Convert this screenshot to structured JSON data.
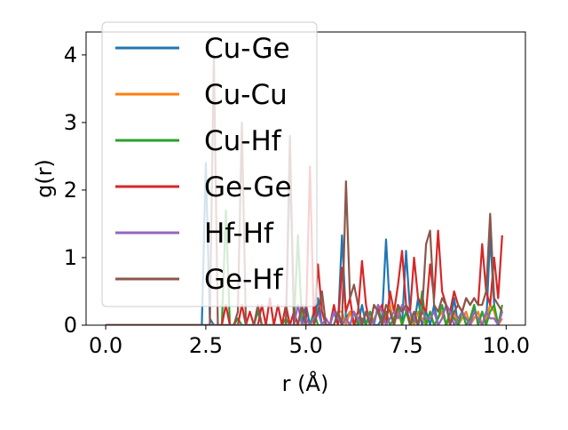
{
  "chart_data": {
    "type": "line",
    "x_label": "r (Å)",
    "y_label": "g(r)",
    "xlim": [
      -0.49,
      10.48
    ],
    "ylim": [
      0,
      4.34
    ],
    "xticks": [
      {
        "value": 0,
        "label": "0.0"
      },
      {
        "value": 2.5,
        "label": "2.5"
      },
      {
        "value": 5,
        "label": "5.0"
      },
      {
        "value": 7.5,
        "label": "7.5"
      },
      {
        "value": 10,
        "label": "10.0"
      }
    ],
    "yticks": [
      0,
      1,
      2,
      3,
      4
    ],
    "legend": "upper left",
    "x": [
      0,
      0.1,
      0.2,
      0.3,
      0.4,
      0.5,
      0.6,
      0.7,
      0.8,
      0.9,
      1,
      1.1,
      1.2,
      1.3,
      1.4,
      1.5,
      1.6,
      1.7,
      1.8,
      1.9,
      2,
      2.1,
      2.2,
      2.3,
      2.4,
      2.5,
      2.6,
      2.7,
      2.8,
      2.9,
      3,
      3.1,
      3.2,
      3.3,
      3.4,
      3.5,
      3.6,
      3.7,
      3.8,
      3.9,
      4,
      4.1,
      4.2,
      4.3,
      4.4,
      4.5,
      4.6,
      4.7,
      4.8,
      4.9,
      5,
      5.1,
      5.2,
      5.3,
      5.4,
      5.5,
      5.6,
      5.7,
      5.8,
      5.9,
      6,
      6.1,
      6.2,
      6.3,
      6.4,
      6.5,
      6.6,
      6.7,
      6.8,
      6.9,
      7,
      7.1,
      7.2,
      7.3,
      7.4,
      7.5,
      7.6,
      7.7,
      7.8,
      7.9,
      8,
      8.1,
      8.2,
      8.3,
      8.4,
      8.5,
      8.6,
      8.7,
      8.8,
      8.9,
      9,
      9.1,
      9.2,
      9.3,
      9.4,
      9.5,
      9.6,
      9.7,
      9.8,
      9.9
    ],
    "series": [
      {
        "name": "Cu-Ge",
        "color": "#1f77b4",
        "values": [
          0,
          0,
          0,
          0,
          0,
          0,
          0,
          0,
          0,
          0,
          0,
          0,
          0,
          0,
          0,
          0,
          0,
          0,
          0,
          0,
          0,
          0,
          0,
          0,
          0,
          2.4,
          0.1,
          0,
          0,
          0,
          0,
          0,
          0,
          0,
          0,
          0,
          0,
          0,
          0,
          0,
          0,
          0,
          0,
          0,
          0,
          0,
          2.4,
          0.2,
          0,
          0,
          0.3,
          0,
          0,
          0.4,
          0,
          0,
          0,
          0.2,
          0,
          1.33,
          0.1,
          0.2,
          0,
          0,
          0.3,
          0,
          0.2,
          0,
          0,
          0.1,
          1.27,
          0.2,
          0,
          0.3,
          0,
          1.1,
          0.2,
          0,
          0.4,
          0,
          0.2,
          0,
          0.3,
          0,
          0.1,
          0.3,
          0,
          0.4,
          0,
          0.2,
          0.1,
          0,
          0.3,
          0,
          0.2,
          0,
          1.33,
          0.3,
          0,
          0.2
        ]
      },
      {
        "name": "Cu-Cu",
        "color": "#ff7f0e",
        "values": [
          0,
          0,
          0,
          0,
          0,
          0,
          0,
          0,
          0,
          0,
          0,
          0,
          0,
          0,
          0,
          0,
          0,
          0,
          0,
          0,
          0,
          0,
          0,
          0,
          0,
          0,
          0,
          0,
          0,
          0,
          0,
          0,
          0,
          0,
          0,
          0,
          0,
          0,
          0,
          0,
          0,
          0,
          0,
          0,
          0,
          0,
          0,
          0,
          0,
          0,
          0,
          0,
          0,
          0,
          0,
          0,
          0,
          0,
          0.2,
          0.2,
          0,
          0.2,
          0,
          0.1,
          0,
          0.2,
          0,
          0.1,
          0.2,
          0,
          0.1,
          0.3,
          0,
          0.2,
          0,
          0.2,
          0.1,
          0,
          0.2,
          0.1,
          0,
          0.2,
          0,
          0.1,
          0.2,
          0,
          0.1,
          0.2,
          0,
          0.1,
          0.2,
          0,
          0.1,
          0.2,
          0,
          0.1,
          0.3,
          0.2,
          0,
          0.1
        ]
      },
      {
        "name": "Cu-Hf",
        "color": "#2ca02c",
        "values": [
          0,
          0,
          0,
          0,
          0,
          0,
          0,
          0,
          0,
          0,
          0,
          0,
          0,
          0,
          0,
          0,
          0,
          0,
          0,
          0,
          0,
          0,
          0,
          0,
          0,
          0,
          0,
          0,
          0,
          0,
          1.7,
          0,
          0,
          0.1,
          0,
          0,
          0,
          0,
          0.2,
          0,
          0,
          0,
          0,
          0,
          0,
          0.1,
          0,
          0,
          1.33,
          0,
          0,
          0,
          0.2,
          0,
          0,
          0,
          0,
          0,
          0.2,
          0,
          0.1,
          0,
          0.2,
          0,
          0.1,
          0,
          0.2,
          0,
          0.3,
          0,
          0.2,
          0,
          0.1,
          0.3,
          0,
          0.2,
          0,
          0.1,
          0,
          0.5,
          0,
          0.2,
          0,
          0.1,
          0.3,
          0,
          0.2,
          0.1,
          0,
          0.2,
          0,
          0.1,
          0.3,
          0,
          0.2,
          0,
          0.2,
          0.3,
          0,
          0.3
        ]
      },
      {
        "name": "Ge-Ge",
        "color": "#d62728",
        "values": [
          0,
          0,
          0,
          0,
          0,
          0,
          0,
          0,
          0,
          0,
          0,
          0,
          0,
          0,
          0,
          0,
          0,
          0,
          0,
          0,
          0,
          0,
          0,
          0,
          0,
          0,
          0,
          0,
          0,
          0,
          0.3,
          0,
          0,
          0,
          0.3,
          0,
          0.2,
          0,
          0,
          0.3,
          0,
          0.4,
          0,
          0.3,
          0,
          0.3,
          0,
          0.2,
          0,
          0.3,
          0,
          2.35,
          0,
          0.9,
          0.2,
          0,
          0,
          0.3,
          0,
          0.85,
          0.2,
          0.4,
          0,
          0.2,
          0.95,
          0.3,
          0,
          0.3,
          0.2,
          0.3,
          0,
          0.5,
          0.2,
          0.6,
          1.1,
          0.3,
          0.2,
          1.0,
          0.4,
          0.3,
          0.2,
          0.9,
          0.4,
          1.4,
          0.5,
          0.3,
          0.2,
          0.5,
          0.3,
          0.2,
          0.4,
          0.3,
          0.4,
          0.3,
          1.2,
          0.5,
          0.3,
          1.0,
          0.4,
          1.33
        ]
      },
      {
        "name": "Hf-Hf",
        "color": "#9467bd",
        "values": [
          0,
          0,
          0,
          0,
          0,
          0,
          0,
          0,
          0,
          0,
          0,
          0,
          0,
          0,
          0,
          0,
          0,
          0,
          0,
          0,
          0,
          0,
          0,
          0,
          0,
          0,
          0,
          0,
          0,
          0,
          0,
          0,
          0,
          0,
          0,
          0,
          0,
          0,
          0,
          0,
          0,
          0,
          0,
          0,
          0,
          0,
          0,
          0,
          0.3,
          0,
          0.1,
          0,
          0.1,
          0.2,
          0,
          0.1,
          0,
          0.2,
          0.1,
          0,
          0.1,
          0,
          0.2,
          0.1,
          0,
          0.2,
          0.1,
          0,
          0.3,
          0.2,
          0,
          0.1,
          0.2,
          0.1,
          0.3,
          0.2,
          0.2,
          0.1,
          0,
          0.2,
          0.1,
          0.1,
          0.2,
          0,
          0.1,
          0.3,
          0.2,
          0,
          0.1,
          0.2,
          0.1,
          0,
          0.2,
          0.1,
          0,
          0.2,
          0.1,
          0.1,
          0,
          0.2
        ]
      },
      {
        "name": "Ge-Hf",
        "color": "#8c564b",
        "values": [
          0,
          0,
          0,
          0,
          0,
          0,
          0,
          0,
          0,
          0,
          0,
          0,
          0,
          0,
          0,
          0,
          0,
          0,
          0,
          0,
          0,
          0,
          0,
          0,
          0,
          0,
          0,
          4.0,
          0,
          0,
          0,
          0,
          0,
          0.2,
          3.0,
          0,
          0,
          0,
          0.3,
          0,
          0,
          0,
          0,
          0,
          0,
          0,
          2.8,
          0,
          0,
          0.3,
          0,
          0,
          0,
          0.2,
          0.5,
          0,
          0,
          0,
          0.2,
          0,
          2.13,
          0.4,
          0.6,
          0.3,
          0,
          0.2,
          0,
          0.3,
          0.2,
          0,
          0.3,
          0.2,
          0,
          0.3,
          0.2,
          0.3,
          0,
          0.2,
          0,
          0.2,
          1.2,
          1.4,
          0.3,
          0.2,
          0.4,
          0.3,
          0,
          0.2,
          0.3,
          0.2,
          0.4,
          0.3,
          0.4,
          0.3,
          0.3,
          0.5,
          1.65,
          0.4,
          0.3,
          0.2
        ]
      }
    ]
  }
}
